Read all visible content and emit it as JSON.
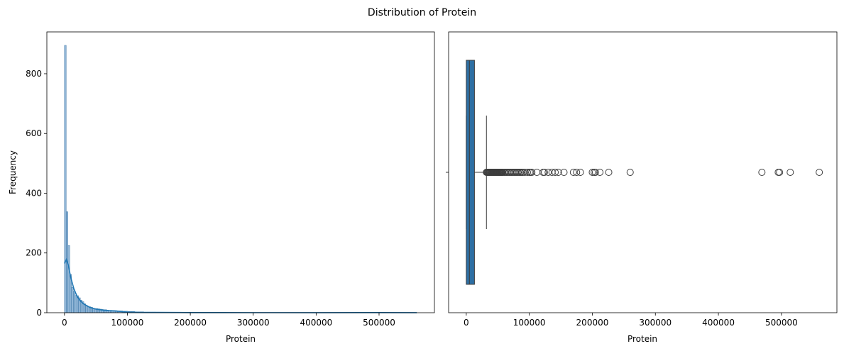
{
  "figure": {
    "suptitle": "Distribution of Protein",
    "colors": {
      "hist_fill": "#6c9ec9",
      "hist_edge": "#2c6a9c",
      "kde_line": "#1f77b4",
      "box_fill": "#2e6fa3",
      "box_line": "#3d3d3d",
      "outlier_edge": "#3d3d3d"
    }
  },
  "chart_data": [
    {
      "type": "histogram",
      "title": "",
      "xlabel": "Protein",
      "ylabel": "Frequency",
      "xlim": [
        -28000,
        588000
      ],
      "ylim": [
        0,
        940
      ],
      "xticks": [
        0,
        100000,
        200000,
        300000,
        400000,
        500000
      ],
      "xtick_labels": [
        "0",
        "100000",
        "200000",
        "300000",
        "400000",
        "500000"
      ],
      "yticks": [
        0,
        200,
        400,
        600,
        800
      ],
      "ytick_labels": [
        "0",
        "200",
        "400",
        "600",
        "800"
      ],
      "grid": false,
      "bin_width": 2800,
      "bin_start": 0,
      "counts": [
        895,
        338,
        225,
        128,
        85,
        72,
        58,
        57,
        50,
        42,
        37,
        30,
        25,
        22,
        20,
        18,
        15,
        14,
        14,
        13,
        12,
        11,
        10,
        10,
        9,
        8,
        8,
        7,
        7,
        7,
        6,
        6,
        6,
        5,
        5,
        5,
        4,
        4,
        4,
        4,
        3,
        3,
        3,
        3,
        3,
        2,
        2,
        2,
        2,
        2,
        2,
        2,
        1,
        1,
        1,
        1,
        1,
        1,
        1,
        1
      ],
      "kde": {
        "x": [
          0,
          3000,
          6000,
          10000,
          15000,
          20000,
          25000,
          30000,
          40000,
          50000,
          60000,
          70000,
          80000,
          90000,
          100000,
          120000,
          150000,
          200000,
          250000,
          300000,
          400000,
          500000,
          560000
        ],
        "y": [
          165,
          178,
          160,
          118,
          80,
          55,
          40,
          30,
          18,
          12,
          9,
          7,
          6,
          4,
          2,
          1,
          1,
          0.5,
          0.5,
          0.3,
          0.2,
          0.5,
          0.2
        ]
      }
    },
    {
      "type": "box",
      "title": "",
      "xlabel": "Protein",
      "ylabel": "",
      "xlim": [
        -28000,
        588000
      ],
      "xticks": [
        0,
        100000,
        200000,
        300000,
        400000,
        500000
      ],
      "xtick_labels": [
        "0",
        "100000",
        "200000",
        "300000",
        "400000",
        "500000"
      ],
      "grid": false,
      "whisker_low": 0,
      "q1": 0,
      "median": 5000,
      "q3": 13000,
      "whisker_high": 32000,
      "outliers": [
        32000,
        33000,
        34000,
        35000,
        36000,
        37000,
        38000,
        39000,
        40000,
        41000,
        42000,
        43000,
        44000,
        45000,
        46000,
        47000,
        48000,
        49000,
        50000,
        51000,
        52000,
        53000,
        54000,
        55000,
        56000,
        57000,
        58000,
        60000,
        62000,
        64000,
        66000,
        68000,
        70000,
        72000,
        74000,
        76000,
        78000,
        80000,
        82000,
        84000,
        86000,
        88000,
        90000,
        93000,
        97000,
        100000,
        102000,
        104000,
        112000,
        122000,
        124000,
        130000,
        136000,
        141000,
        146000,
        155000,
        170000,
        175000,
        181000,
        200000,
        203000,
        205000,
        212000,
        226000,
        260000,
        469000,
        495000,
        497000,
        514000,
        560000
      ]
    }
  ]
}
